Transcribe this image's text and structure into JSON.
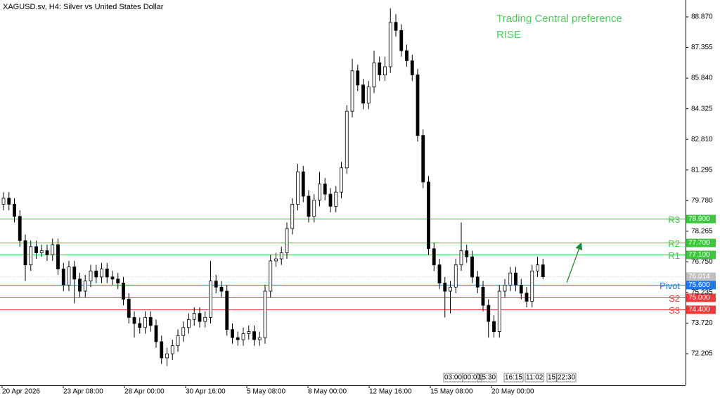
{
  "chart_data": {
    "type": "candlestick",
    "title": "XAGUSD.sv, H4:  Silver vs United States Dollar",
    "annotation": "Trading Central preference",
    "preference": "RISE",
    "ylim": [
      70.64,
      89.705
    ],
    "yticks": [
      {
        "value": 88.87,
        "label": "88.870"
      },
      87.355,
      {
        "value": 85.84,
        "label": "85.840"
      },
      84.325,
      {
        "value": 82.81,
        "label": "82.810"
      },
      81.295,
      {
        "value": 79.78,
        "label": "79.780"
      },
      78.265,
      {
        "value": 76.75,
        "label": "76.750"
      },
      75.235,
      {
        "value": 73.72,
        "label": "73.720"
      },
      72.205
    ],
    "x_labels": [
      "20 Apr 2026",
      "23 Apr 08:00",
      "28 Apr 00:00",
      "30 Apr 16:00",
      "5 May 08:00",
      "8 May 00:00",
      "12 May 16:00",
      "15 May 08:00",
      "20 May 00:00"
    ],
    "time_markers": [
      "03:00",
      "00:07",
      "15:30",
      "16:15",
      "11:02",
      "15",
      "22:30"
    ],
    "up_color": "#ffffff",
    "down_color": "#000000",
    "last_price": 76.014,
    "levels": {
      "names": [
        "R3",
        "R2",
        "R1",
        "Pivot",
        "S2",
        "S3"
      ],
      "values": [
        78.9,
        77.7,
        77.1,
        75.6,
        75.0,
        74.4
      ],
      "value_labels": [
        "78.900",
        "77.700",
        "77.100",
        "75.600",
        "75.000",
        "74.400"
      ],
      "colors": [
        "#3cc83c",
        "#3cc83c",
        "#3cc83c",
        "#1e78e6",
        "#ee3b3b",
        "#ee3b3b"
      ]
    },
    "candles": [
      [
        79.6,
        80.2,
        79.3,
        79.9
      ],
      [
        79.9,
        80.2,
        79.3,
        79.6
      ],
      [
        79.6,
        79.9,
        78.7,
        79.0
      ],
      [
        79.0,
        79.3,
        77.5,
        77.8
      ],
      [
        77.8,
        78.1,
        75.8,
        76.6
      ],
      [
        76.6,
        77.8,
        76.3,
        77.5
      ],
      [
        77.5,
        77.8,
        76.9,
        77.2
      ],
      [
        77.2,
        77.6,
        77.0,
        77.3
      ],
      [
        77.3,
        77.6,
        76.8,
        77.1
      ],
      [
        77.1,
        77.9,
        76.8,
        77.6
      ],
      [
        77.6,
        77.9,
        76.1,
        76.4
      ],
      [
        76.4,
        76.7,
        75.3,
        75.6
      ],
      [
        75.6,
        76.8,
        75.3,
        76.5
      ],
      [
        76.5,
        76.8,
        74.7,
        75.9
      ],
      [
        75.9,
        76.2,
        75.0,
        75.3
      ],
      [
        75.3,
        76.1,
        75.0,
        75.8
      ],
      [
        75.8,
        76.6,
        75.5,
        76.3
      ],
      [
        76.3,
        76.6,
        75.7,
        76.0
      ],
      [
        76.0,
        76.7,
        75.7,
        76.4
      ],
      [
        76.4,
        76.7,
        75.7,
        76.0
      ],
      [
        76.0,
        76.3,
        75.6,
        75.9
      ],
      [
        75.9,
        76.2,
        75.4,
        75.7
      ],
      [
        75.7,
        76.0,
        74.6,
        74.9
      ],
      [
        74.9,
        75.2,
        73.7,
        74.0
      ],
      [
        74.0,
        74.3,
        73.0,
        73.7
      ],
      [
        73.7,
        74.0,
        73.2,
        73.5
      ],
      [
        73.5,
        74.3,
        73.2,
        74.0
      ],
      [
        74.0,
        74.3,
        73.3,
        73.6
      ],
      [
        73.6,
        73.9,
        72.5,
        72.8
      ],
      [
        72.8,
        73.1,
        71.7,
        72.0
      ],
      [
        72.0,
        72.5,
        71.6,
        72.2
      ],
      [
        72.2,
        72.9,
        71.9,
        72.6
      ],
      [
        72.6,
        73.4,
        72.3,
        73.1
      ],
      [
        73.1,
        73.8,
        72.8,
        73.5
      ],
      [
        73.5,
        74.2,
        73.2,
        73.9
      ],
      [
        73.9,
        74.5,
        73.6,
        74.2
      ],
      [
        74.2,
        74.5,
        73.5,
        73.8
      ],
      [
        73.8,
        74.3,
        73.5,
        74.0
      ],
      [
        74.0,
        76.8,
        73.7,
        75.8
      ],
      [
        75.8,
        76.1,
        75.2,
        75.5
      ],
      [
        75.5,
        75.8,
        75.0,
        75.3
      ],
      [
        75.3,
        75.6,
        73.1,
        73.4
      ],
      [
        73.4,
        73.7,
        72.7,
        73.0
      ],
      [
        73.0,
        73.3,
        72.6,
        72.9
      ],
      [
        72.9,
        73.5,
        72.6,
        73.2
      ],
      [
        73.2,
        73.6,
        72.9,
        73.3
      ],
      [
        73.3,
        73.6,
        72.6,
        72.9
      ],
      [
        72.9,
        73.3,
        72.6,
        73.0
      ],
      [
        73.0,
        75.6,
        72.7,
        75.3
      ],
      [
        75.3,
        77.1,
        75.0,
        76.8
      ],
      [
        76.8,
        77.2,
        76.5,
        76.9
      ],
      [
        76.9,
        77.5,
        76.6,
        77.2
      ],
      [
        77.2,
        78.7,
        76.9,
        78.4
      ],
      [
        78.4,
        79.9,
        78.1,
        79.6
      ],
      [
        79.6,
        81.6,
        79.3,
        81.2
      ],
      [
        81.2,
        81.5,
        79.7,
        80.0
      ],
      [
        80.0,
        80.3,
        78.7,
        79.0
      ],
      [
        79.0,
        80.1,
        78.7,
        79.8
      ],
      [
        79.8,
        81.2,
        79.5,
        80.6
      ],
      [
        80.6,
        80.9,
        79.8,
        80.1
      ],
      [
        80.1,
        80.4,
        79.2,
        79.5
      ],
      [
        79.5,
        80.5,
        79.2,
        80.2
      ],
      [
        80.2,
        81.7,
        79.9,
        81.4
      ],
      [
        81.4,
        84.5,
        81.1,
        84.2
      ],
      [
        84.2,
        86.8,
        83.9,
        86.2
      ],
      [
        86.2,
        86.5,
        85.2,
        85.5
      ],
      [
        85.5,
        85.8,
        84.3,
        84.6
      ],
      [
        84.6,
        85.7,
        84.3,
        85.4
      ],
      [
        85.4,
        87.2,
        85.1,
        86.6
      ],
      [
        86.6,
        86.9,
        85.7,
        86.0
      ],
      [
        86.0,
        86.9,
        85.7,
        86.4
      ],
      [
        86.4,
        89.3,
        86.1,
        88.6
      ],
      [
        88.6,
        89.0,
        87.9,
        88.2
      ],
      [
        88.2,
        88.5,
        86.9,
        87.2
      ],
      [
        87.2,
        87.5,
        86.4,
        86.7
      ],
      [
        86.7,
        87.0,
        85.7,
        86.0
      ],
      [
        86.0,
        86.3,
        82.7,
        83.0
      ],
      [
        83.0,
        83.3,
        80.4,
        80.7
      ],
      [
        80.7,
        81.0,
        77.1,
        77.4
      ],
      [
        77.4,
        77.7,
        76.3,
        76.6
      ],
      [
        76.6,
        76.9,
        75.4,
        75.7
      ],
      [
        75.7,
        76.0,
        74.0,
        75.3
      ],
      [
        75.3,
        75.8,
        74.2,
        75.5
      ],
      [
        75.5,
        76.9,
        75.2,
        76.6
      ],
      [
        76.6,
        78.7,
        76.3,
        77.3
      ],
      [
        77.3,
        77.6,
        76.7,
        77.0
      ],
      [
        77.0,
        77.3,
        75.7,
        76.0
      ],
      [
        76.0,
        76.3,
        75.2,
        75.5
      ],
      [
        75.5,
        75.8,
        74.3,
        74.6
      ],
      [
        74.6,
        74.9,
        73.0,
        73.8
      ],
      [
        73.8,
        74.1,
        73.0,
        73.3
      ],
      [
        73.3,
        75.6,
        73.0,
        75.3
      ],
      [
        75.3,
        75.9,
        75.0,
        75.6
      ],
      [
        75.6,
        76.5,
        75.3,
        76.2
      ],
      [
        76.2,
        76.5,
        75.3,
        75.6
      ],
      [
        75.6,
        75.9,
        74.9,
        75.2
      ],
      [
        75.2,
        75.5,
        74.5,
        74.8
      ],
      [
        74.8,
        76.6,
        74.5,
        76.3
      ],
      [
        76.3,
        77.0,
        76.0,
        76.6
      ],
      [
        76.6,
        76.9,
        75.9,
        76.014
      ]
    ]
  }
}
